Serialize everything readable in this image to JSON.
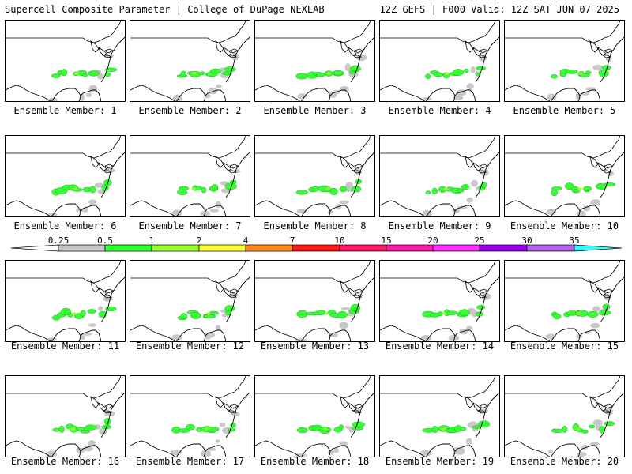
{
  "header": {
    "left": "Supercell Composite Parameter | College of DuPage NEXLAB",
    "right": "12Z GEFS | F000 Valid: 12Z SAT JUN 07 2025"
  },
  "panel_label_prefix": "Ensemble Member: ",
  "members": [
    {
      "label": "Ensemble Member: 1"
    },
    {
      "label": "Ensemble Member: 2"
    },
    {
      "label": "Ensemble Member: 3"
    },
    {
      "label": "Ensemble Member: 4"
    },
    {
      "label": "Ensemble Member: 5"
    },
    {
      "label": "Ensemble Member: 6"
    },
    {
      "label": "Ensemble Member: 7"
    },
    {
      "label": "Ensemble Member: 8"
    },
    {
      "label": "Ensemble Member: 9"
    },
    {
      "label": "Ensemble Member: 10"
    },
    {
      "label": "Ensemble Member: 11"
    },
    {
      "label": "Ensemble Member: 12"
    },
    {
      "label": "Ensemble Member: 13"
    },
    {
      "label": "Ensemble Member: 14"
    },
    {
      "label": "Ensemble Member: 15"
    },
    {
      "label": "Ensemble Member: 16"
    },
    {
      "label": "Ensemble Member: 17"
    },
    {
      "label": "Ensemble Member: 18"
    },
    {
      "label": "Ensemble Member: 19"
    },
    {
      "label": "Ensemble Member: 20"
    }
  ],
  "colorbar": {
    "labels": [
      "0.25",
      "0.5",
      "1",
      "2",
      "4",
      "7",
      "10",
      "15",
      "20",
      "25",
      "30",
      "35"
    ],
    "colors": [
      "#c8c8c8",
      "#33ff33",
      "#99ff33",
      "#ffff33",
      "#ff8c1a",
      "#ff1a1a",
      "#ff1a66",
      "#ff1aaa",
      "#ff33ff",
      "#9900ee",
      "#b266e6",
      "#33ffff"
    ]
  }
}
